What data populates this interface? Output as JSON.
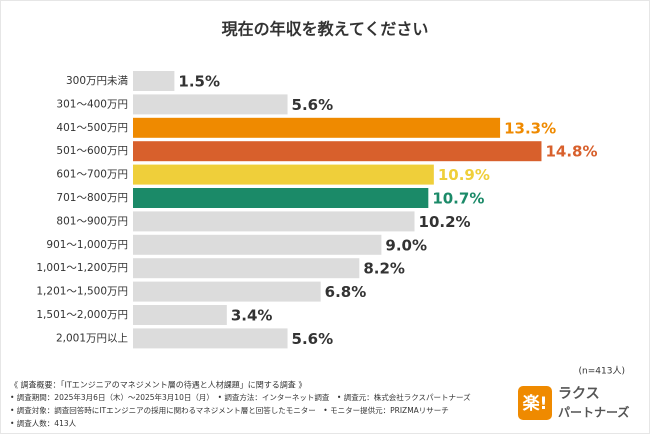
{
  "chart_data": {
    "type": "hbar",
    "title": "現在の年収を教えてください",
    "categories": [
      "300万円未満",
      "301～400万円",
      "401～500万円",
      "501～600万円",
      "601～700万円",
      "701～800万円",
      "801～900万円",
      "901～1,000万円",
      "1,001～1,200万円",
      "1,201～1,500万円",
      "1,501～2,000万円",
      "2,001万円以上"
    ],
    "values": [
      1.5,
      5.6,
      13.3,
      14.8,
      10.9,
      10.7,
      10.2,
      9.0,
      8.2,
      6.8,
      3.4,
      5.6
    ],
    "value_labels": [
      "1.5%",
      "5.6%",
      "13.3%",
      "14.8%",
      "10.9%",
      "10.7%",
      "10.2%",
      "9.0%",
      "8.2%",
      "6.8%",
      "3.4%",
      "5.6%"
    ],
    "colors": [
      "#dcdcdc",
      "#dcdcdc",
      "#ef8a00",
      "#d8602c",
      "#efcf3a",
      "#1b8a68",
      "#dcdcdc",
      "#dcdcdc",
      "#dcdcdc",
      "#dcdcdc",
      "#dcdcdc",
      "#dcdcdc"
    ],
    "sample_note": "(n=413人)"
  },
  "notes": [
    "《 調査概要：「ITエンジニアのマネジメント層の待遇と人材課題」に関する調査 》",
    "• 調査期間：2025年3月6日（木）～2025年3月10日（月）　• 調査方法：インターネット調査　• 調査元：株式会社ラクスパートナーズ",
    "• 調査対象：調査回答時にITエンジニアの採用に関わるマネジメント層と回答したモニター　• モニター提供元：PRIZMAリサーチ",
    "• 調査人数：413人"
  ],
  "logo": {
    "mark": "楽!",
    "line1": "ラクス",
    "line2": "パートナーズ"
  }
}
